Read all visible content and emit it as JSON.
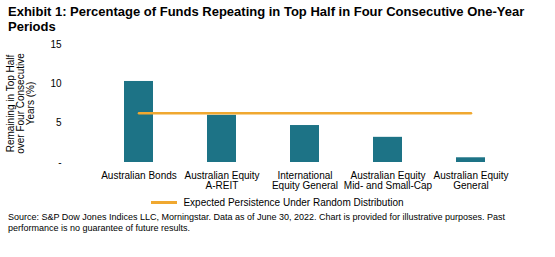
{
  "chart_data": {
    "type": "bar",
    "title": "Exhibit 1: Percentage of Funds Repeating in Top Half in Four Consecutive One-Year Periods",
    "y_label": "Remaining in Top Half over Four Consecutive Years (%)",
    "categories": [
      "Australian Bonds",
      "Australian Equity A-REIT",
      "International Equity General",
      "Australian Equity Mid- and Small-Cap",
      "Australian Equity General"
    ],
    "values": [
      10.3,
      6.0,
      4.7,
      3.2,
      0.6
    ],
    "color": "#1d7386",
    "reference_line": {
      "name": "Expected Persistence Under Random Distribution",
      "type": "line",
      "value": 6.25,
      "color": "#f0a830"
    },
    "ylim": [
      0,
      15
    ],
    "yticks": [
      {
        "value": 0,
        "label": "-"
      },
      5,
      10,
      15
    ],
    "grid": false,
    "legend": "bottom",
    "source": "Source: S&P Dow Jones Indices LLC, Morningstar.  Data as of June 30, 2022.  Chart is provided for illustrative purposes.  Past performance is no guarantee of future results."
  }
}
